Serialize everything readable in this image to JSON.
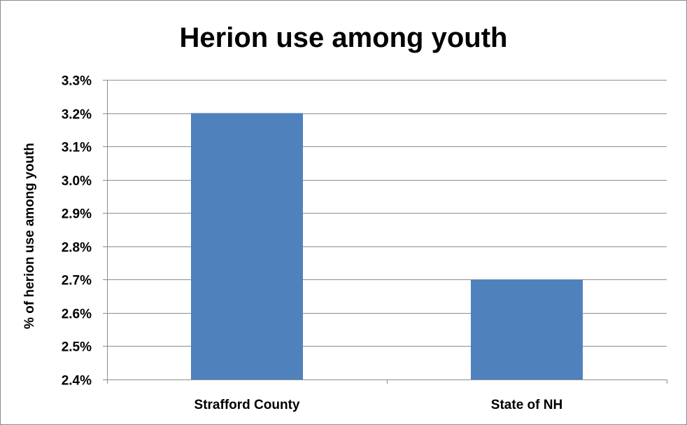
{
  "chart_data": {
    "type": "bar",
    "title": "Herion use among youth",
    "xlabel": "",
    "ylabel": "% of  herion use among youth",
    "categories": [
      "Strafford County",
      "State of NH"
    ],
    "values": [
      3.2,
      2.7
    ],
    "ylim": [
      2.4,
      3.3
    ],
    "yticks": [
      2.4,
      2.5,
      2.6,
      2.7,
      2.8,
      2.9,
      3.0,
      3.1,
      3.2,
      3.3
    ],
    "ytick_labels": [
      "2.4%",
      "2.5%",
      "2.6%",
      "2.7%",
      "2.8%",
      "2.9%",
      "3.0%",
      "3.1%",
      "3.2%",
      "3.3%"
    ],
    "grid": true,
    "legend": "none",
    "bar_color": "#4f81bd"
  }
}
